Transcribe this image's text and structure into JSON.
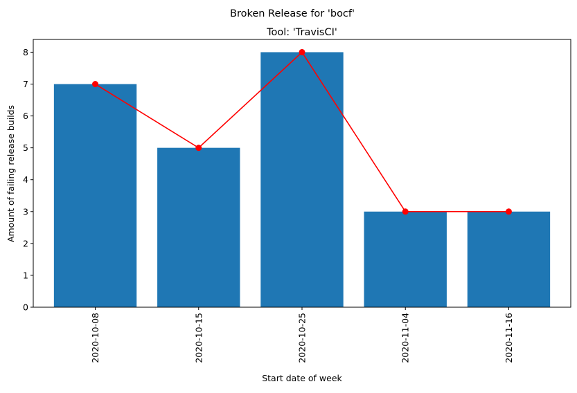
{
  "chart_data": {
    "type": "bar",
    "suptitle": "Broken Release for 'bocf'",
    "title": "Tool: 'TravisCI'",
    "xlabel": "Start date of week",
    "ylabel": "Amount of failing release builds",
    "categories": [
      "2020-10-08",
      "2020-10-15",
      "2020-10-25",
      "2020-11-04",
      "2020-11-16"
    ],
    "values": [
      7,
      5,
      8,
      3,
      3
    ],
    "line_values": [
      7,
      5,
      8,
      3,
      3
    ],
    "ylim": [
      0,
      8.4
    ],
    "yticks": [
      0,
      1,
      2,
      3,
      4,
      5,
      6,
      7,
      8
    ],
    "grid": false,
    "bar_color": "#1f77b4",
    "line_color": "#ff0000"
  }
}
